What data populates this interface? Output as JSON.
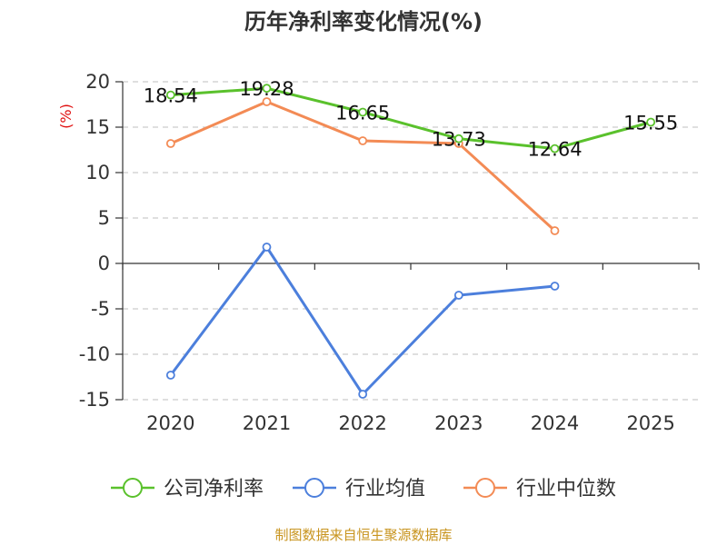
{
  "chart_data": {
    "type": "line",
    "title": "历年净利率变化情况(%)",
    "ylabel": "(%)",
    "categories": [
      "2020",
      "2021",
      "2022",
      "2023",
      "2024",
      "2025"
    ],
    "ylim": [
      -15,
      20
    ],
    "yticks": [
      20,
      15,
      10,
      5,
      0,
      -5,
      -10,
      -15
    ],
    "grid": true,
    "legend": "bottom",
    "series": [
      {
        "name": "公司净利率",
        "color": "#5ac12c",
        "values": [
          18.54,
          19.28,
          16.65,
          13.73,
          12.64,
          15.55
        ],
        "labels": [
          "18.54",
          "19.28",
          "16.65",
          "13.73",
          "12.64",
          "15.55"
        ]
      },
      {
        "name": "行业均值",
        "color": "#4c7fdc",
        "values": [
          -12.3,
          1.8,
          -14.4,
          -3.5,
          -2.5,
          null
        ]
      },
      {
        "name": "行业中位数",
        "color": "#f38b55",
        "values": [
          13.2,
          17.8,
          13.5,
          13.2,
          3.6,
          null
        ]
      }
    ]
  },
  "colors": {
    "ylabel": "#e01010",
    "footer": "#c8941e"
  },
  "footer": "制图数据来自恒生聚源数据库"
}
